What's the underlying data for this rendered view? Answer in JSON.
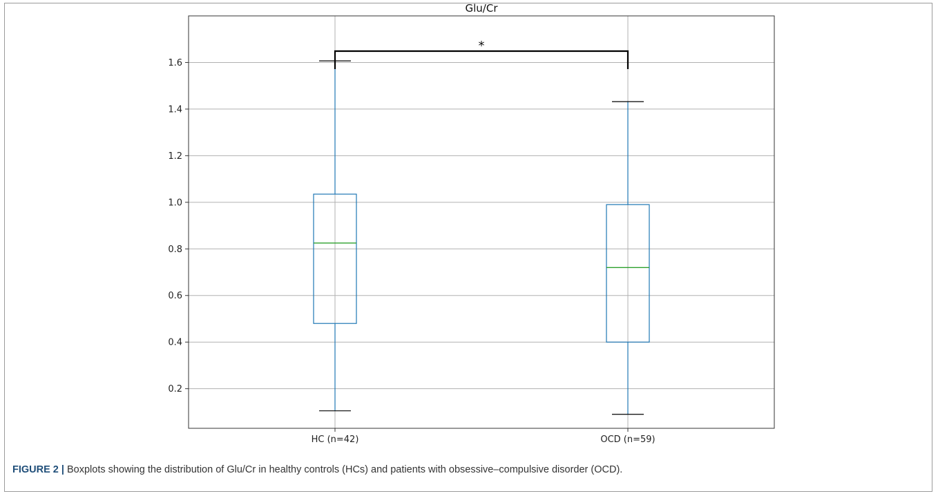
{
  "figure": {
    "label": "FIGURE 2 |",
    "caption": "Boxplots showing the distribution of Glu/Cr in healthy controls (HCs) and patients with obsessive–compulsive disorder (OCD)."
  },
  "chart_data": {
    "type": "box",
    "title": "Glu/Cr",
    "xlabel": "",
    "ylabel": "",
    "ylim": [
      0.03,
      1.8
    ],
    "yticks": [
      0.2,
      0.4,
      0.6,
      0.8,
      1.0,
      1.2,
      1.4,
      1.6
    ],
    "grid": true,
    "categories": [
      "HC (n=42)",
      "OCD (n=59)"
    ],
    "boxes": [
      {
        "category": "HC (n=42)",
        "whisker_low": 0.105,
        "q1": 0.48,
        "median": 0.825,
        "q3": 1.035,
        "whisker_high": 1.607
      },
      {
        "category": "OCD (n=59)",
        "whisker_low": 0.09,
        "q1": 0.4,
        "median": 0.72,
        "q3": 0.99,
        "whisker_high": 1.432
      }
    ],
    "annotations": [
      {
        "type": "significance-bracket",
        "between": [
          "HC (n=42)",
          "OCD (n=59)"
        ],
        "label": "*"
      }
    ],
    "colors": {
      "box": "#1f77b4",
      "median": "#2ca02c",
      "cap": "#000000",
      "grid": "#b0b0b0",
      "bracket": "#000000"
    }
  }
}
